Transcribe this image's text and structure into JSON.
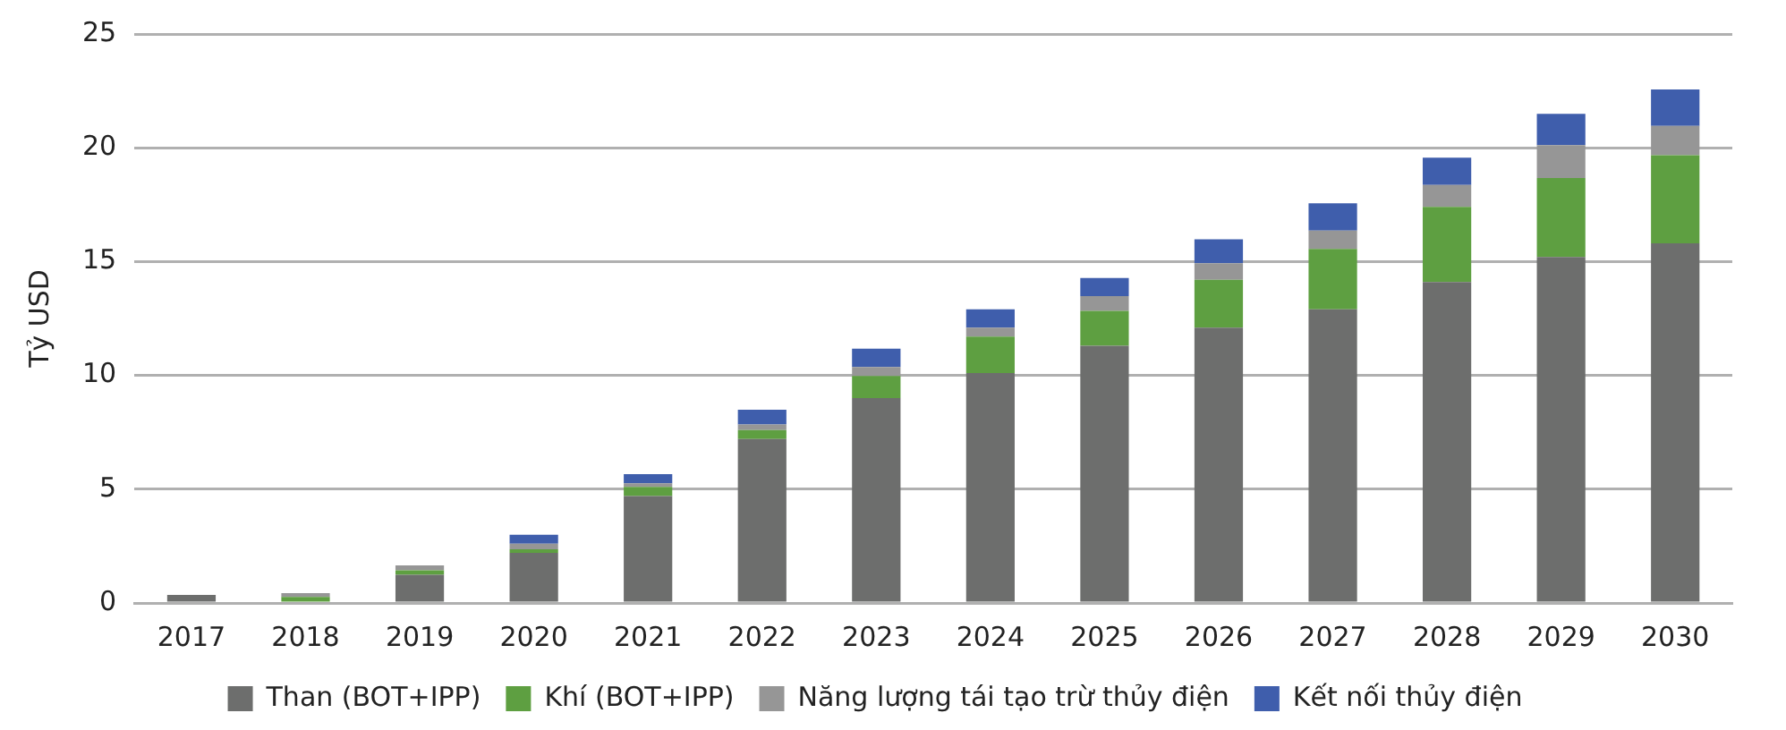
{
  "chart_data": {
    "type": "bar",
    "stacked": true,
    "ylabel": "Tỷ USD",
    "categories": [
      "2017",
      "2018",
      "2019",
      "2020",
      "2021",
      "2022",
      "2023",
      "2024",
      "2025",
      "2026",
      "2027",
      "2028",
      "2029",
      "2030"
    ],
    "series": [
      {
        "name": "Than (BOT+IPP)",
        "color": "#6d6e6d",
        "values": [
          0.35,
          0,
          1.24,
          2.2,
          4.7,
          7.2,
          9.0,
          10.1,
          11.3,
          12.1,
          12.9,
          14.1,
          15.2,
          15.8
        ]
      },
      {
        "name": "Khí (BOT+IPP)",
        "color": "#5e9f41",
        "values": [
          0,
          0.27,
          0.19,
          0.16,
          0.4,
          0.4,
          0.97,
          1.6,
          1.53,
          2.1,
          2.66,
          3.3,
          3.47,
          3.87
        ]
      },
      {
        "name": "Năng lượng tái tạo trừ thủy điện",
        "color": "#969696",
        "values": [
          0,
          0.16,
          0.22,
          0.24,
          0.16,
          0.24,
          0.4,
          0.4,
          0.65,
          0.73,
          0.8,
          0.97,
          1.45,
          1.29
        ]
      },
      {
        "name": "Kết nối thủy điện",
        "color": "#3f5eac",
        "values": [
          0,
          0,
          0,
          0.4,
          0.4,
          0.65,
          0.8,
          0.8,
          0.8,
          1.05,
          1.2,
          1.2,
          1.37,
          1.6
        ]
      }
    ],
    "ylim": [
      0,
      25
    ],
    "yticks": [
      0,
      5,
      10,
      15,
      20,
      25
    ],
    "grid": "y",
    "legend": "bottom"
  }
}
